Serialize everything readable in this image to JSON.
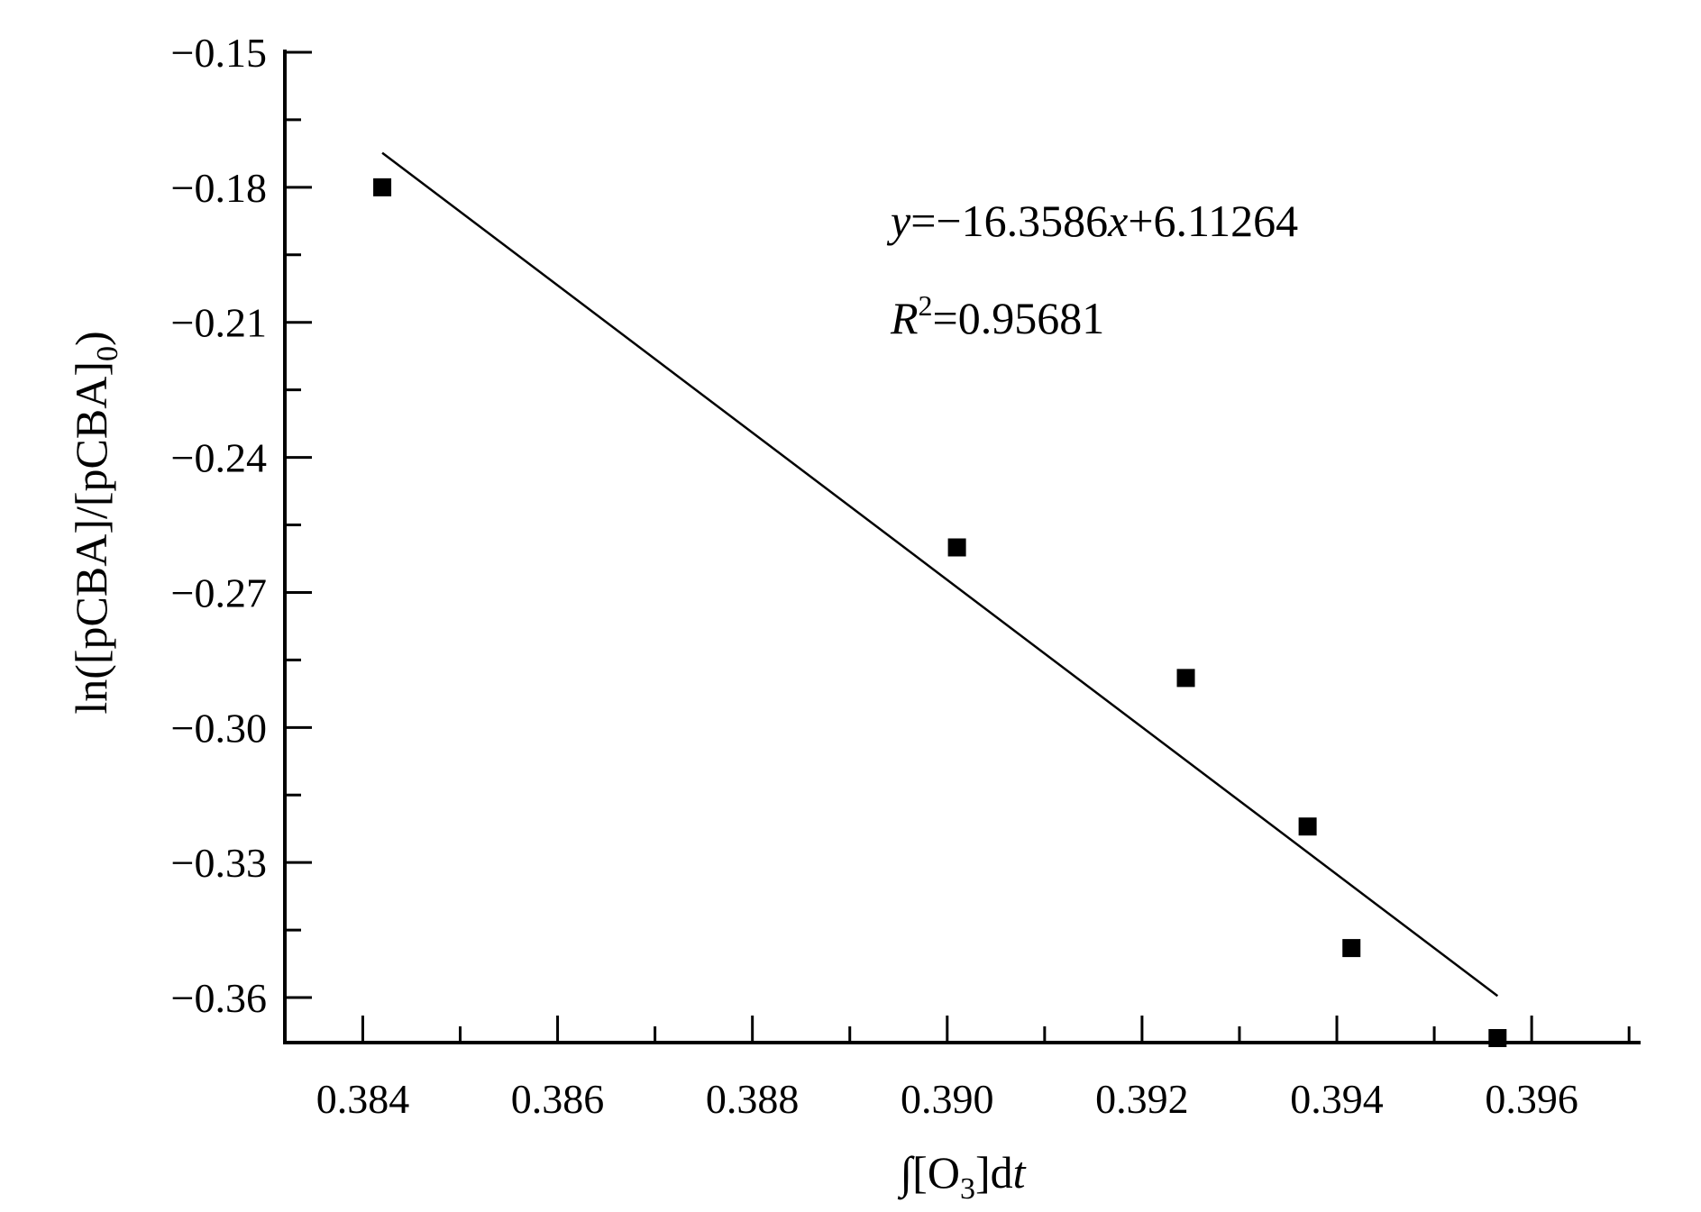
{
  "chart_data": {
    "type": "scatter",
    "title": "",
    "xlabel": "∫[O3]dt",
    "xlabel_parts": {
      "prefix": "∫[O",
      "sub": "3",
      "suffix": "]d",
      "italic": "t"
    },
    "ylabel": "ln([pCBA]/[pCBA]0)",
    "ylabel_parts": {
      "main": "ln([pCBA]/[pCBA]",
      "sub": "0",
      "close": ")"
    },
    "xlim": [
      0.3832,
      0.3971
    ],
    "ylim": [
      -0.37,
      -0.15
    ],
    "x_ticks": [
      0.384,
      0.386,
      0.388,
      0.39,
      0.392,
      0.394,
      0.396
    ],
    "x_tick_labels": [
      "0.384",
      "0.386",
      "0.388",
      "0.390",
      "0.392",
      "0.394",
      "0.396"
    ],
    "y_ticks": [
      -0.15,
      -0.18,
      -0.21,
      -0.24,
      -0.27,
      -0.3,
      -0.33,
      -0.36
    ],
    "y_tick_labels": [
      "−0.15",
      "−0.18",
      "−0.21",
      "−0.24",
      "−0.27",
      "−0.30",
      "−0.33",
      "−0.36"
    ],
    "grid": false,
    "series": [
      {
        "marker": "square",
        "color": "#000000",
        "x": [
          0.3842,
          0.3901,
          0.39245,
          0.3937,
          0.39415,
          0.39565
        ],
        "y": [
          -0.18,
          -0.26,
          -0.289,
          -0.322,
          -0.349,
          -0.369
        ]
      }
    ],
    "fit_line": {
      "slope": -16.3586,
      "intercept": 6.11264,
      "x_range": [
        0.3842,
        0.39565
      ]
    },
    "annotations": {
      "equation": {
        "y": "y",
        "eq": "=−16.3586",
        "x": "x",
        "rest": "+6.11264"
      },
      "r2": {
        "r": "R",
        "sup": "2",
        "value": "=0.95681"
      }
    }
  }
}
